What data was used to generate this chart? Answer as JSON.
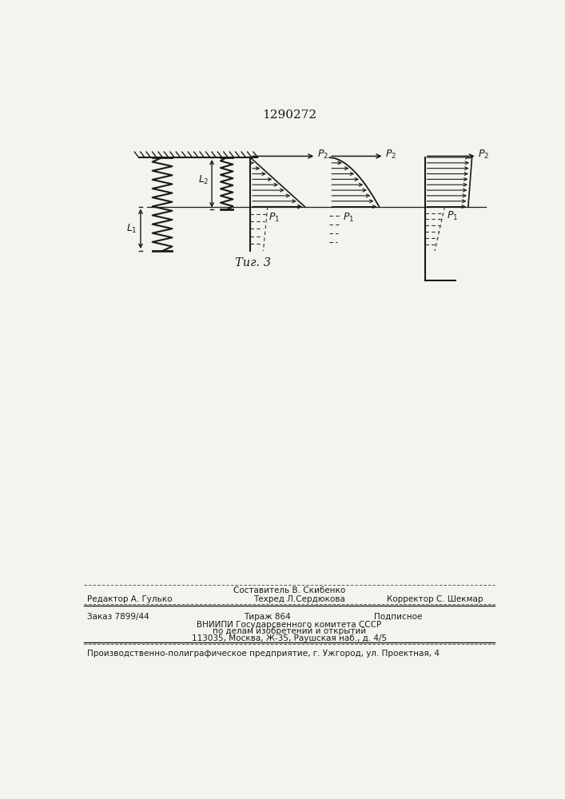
{
  "title": "1290272",
  "fig_label": "Τиг. 3",
  "bg_color": "#f5f3f0",
  "line_color": "#1a1a1a",
  "dashed_color": "#333333",
  "footer": {
    "line1_center": "Составитель В. Скибенко",
    "line2_left": "Редактор А. Гулько",
    "line2_center": "Техред Л.Сердюкова",
    "line2_right": "Корректор С. Шекмар",
    "line3_left": "Заказ 7899/44",
    "line3_center": "Тираж 864",
    "line3_right": "Подписное",
    "line4": "ВНИИПИ Государсвенного комитета СССР",
    "line5": "по делам изобретений и открытий",
    "line6": "113035, Москва, Ж-35, Раушская наб., д. 4/5",
    "line7": "Производственно-полиграфическое предприятие, г. Ужгород, ул. Проектная, 4"
  }
}
